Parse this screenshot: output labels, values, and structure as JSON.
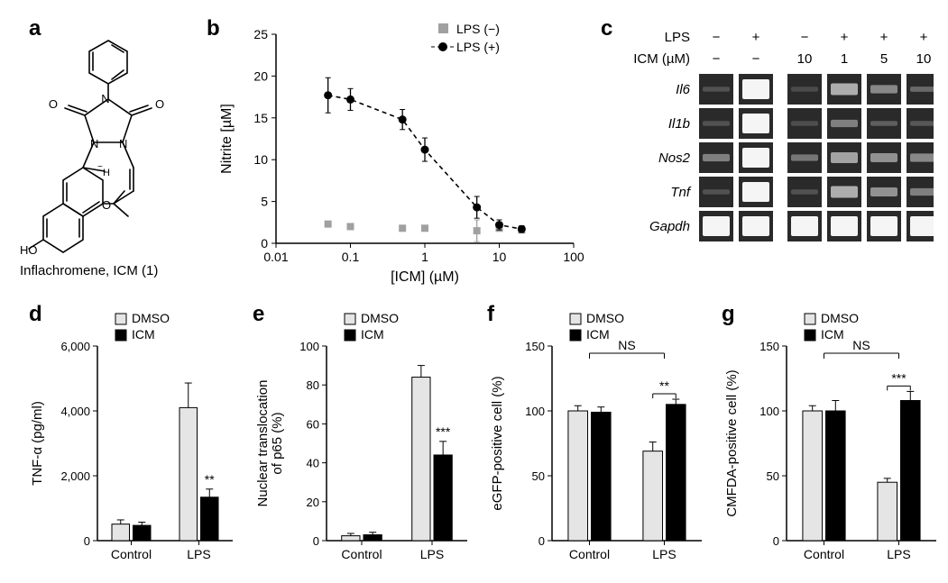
{
  "panels": {
    "a": {
      "label": "a",
      "caption": "Inflachromene, ICM (1)"
    },
    "b": {
      "label": "b",
      "legend": [
        {
          "marker": "square",
          "color": "#a0a0a0",
          "label": "LPS (−)"
        },
        {
          "marker": "circle",
          "color": "#000000",
          "label": "LPS (+)"
        }
      ],
      "ylabel": "Nitrite [µM]",
      "xlabel": "[ICM] (µM)",
      "xlog": true,
      "xlim": [
        0.01,
        100
      ],
      "xticks": [
        0.01,
        0.1,
        1,
        10,
        100
      ],
      "ylim": [
        0,
        25
      ],
      "yticks": [
        0,
        5,
        10,
        15,
        20,
        25
      ],
      "series_plus": [
        {
          "x": 0.05,
          "y": 17.7,
          "err": 2.1
        },
        {
          "x": 0.1,
          "y": 17.2,
          "err": 1.3
        },
        {
          "x": 0.5,
          "y": 14.8,
          "err": 1.2
        },
        {
          "x": 1.0,
          "y": 11.2,
          "err": 1.4
        },
        {
          "x": 5.0,
          "y": 4.3,
          "err": 1.3
        },
        {
          "x": 10.0,
          "y": 2.2,
          "err": 0.6
        },
        {
          "x": 20.0,
          "y": 1.7,
          "err": 0.4
        }
      ],
      "series_minus": [
        {
          "x": 0.05,
          "y": 2.3,
          "err": 0.3
        },
        {
          "x": 0.1,
          "y": 2.0,
          "err": 0.3
        },
        {
          "x": 0.5,
          "y": 1.8,
          "err": 0.3
        },
        {
          "x": 1.0,
          "y": 1.8,
          "err": 0.3
        },
        {
          "x": 5.0,
          "y": 1.5,
          "err": 1.3
        },
        {
          "x": 10.0,
          "y": 1.8,
          "err": 0.3
        },
        {
          "x": 20.0,
          "y": 1.6,
          "err": 0.3
        }
      ],
      "axis_color": "#000",
      "tick_fontsize": 14,
      "label_fontsize": 16
    },
    "c": {
      "label": "c",
      "header_rows": [
        {
          "name": "LPS",
          "values": [
            "−",
            "+",
            "−",
            "+",
            "+",
            "+"
          ]
        },
        {
          "name": "ICM (µM)",
          "values": [
            "−",
            "−",
            "10",
            "1",
            "5",
            "10"
          ]
        }
      ],
      "rows": [
        {
          "gene": "Il6",
          "bands": [
            0.05,
            1.0,
            0.02,
            0.55,
            0.35,
            0.18
          ]
        },
        {
          "gene": "Il1b",
          "bands": [
            0.05,
            1.0,
            0.03,
            0.3,
            0.12,
            0.08
          ]
        },
        {
          "gene": "Nos2",
          "bands": [
            0.3,
            1.0,
            0.25,
            0.5,
            0.4,
            0.35
          ]
        },
        {
          "gene": "Tnf",
          "bands": [
            0.05,
            1.0,
            0.05,
            0.55,
            0.4,
            0.3
          ]
        },
        {
          "gene": "Gapdh",
          "bands": [
            1.0,
            1.0,
            1.0,
            1.0,
            1.0,
            1.0
          ]
        }
      ],
      "bg_color": "#2a2a2a",
      "band_color": "#f5f5f5",
      "gap_color": "#ffffff",
      "label_fontsize": 15,
      "gene_italic": true
    },
    "d": {
      "label": "d",
      "ylabel": "TNF-α (pg/ml)",
      "legend": [
        {
          "fill": "#e5e5e5",
          "label": "DMSO"
        },
        {
          "fill": "#000000",
          "label": "ICM"
        }
      ],
      "groups": [
        "Control",
        "LPS"
      ],
      "ylim": [
        0,
        6000
      ],
      "yticks": [
        0,
        2000,
        4000,
        6000
      ],
      "ytick_labels": [
        "0",
        "2,000",
        "4,000",
        "6,000"
      ],
      "data": [
        {
          "dmso": 510,
          "dmso_err": 130,
          "icm": 470,
          "icm_err": 100
        },
        {
          "dmso": 4100,
          "dmso_err": 760,
          "icm": 1340,
          "icm_err": 250,
          "sig": "**"
        }
      ]
    },
    "e": {
      "label": "e",
      "ylabel": "Nuclear translocation\nof p65 (%)",
      "legend": [
        {
          "fill": "#e5e5e5",
          "label": "DMSO"
        },
        {
          "fill": "#000000",
          "label": "ICM"
        }
      ],
      "groups": [
        "Control",
        "LPS"
      ],
      "ylim": [
        0,
        100
      ],
      "yticks": [
        0,
        20,
        40,
        60,
        80,
        100
      ],
      "data": [
        {
          "dmso": 2.5,
          "dmso_err": 1.2,
          "icm": 3.0,
          "icm_err": 1.3
        },
        {
          "dmso": 84,
          "dmso_err": 6,
          "icm": 44,
          "icm_err": 7,
          "sig": "***"
        }
      ]
    },
    "f": {
      "label": "f",
      "ylabel": "eGFP-positive cell (%)",
      "legend": [
        {
          "fill": "#e5e5e5",
          "label": "DMSO"
        },
        {
          "fill": "#000000",
          "label": "ICM"
        }
      ],
      "groups": [
        "Control",
        "LPS"
      ],
      "ylim": [
        0,
        150
      ],
      "yticks": [
        0,
        50,
        100,
        150
      ],
      "data": [
        {
          "dmso": 100,
          "dmso_err": 4,
          "icm": 99,
          "icm_err": 4
        },
        {
          "dmso": 69,
          "dmso_err": 7,
          "icm": 105,
          "icm_err": 4,
          "sig": "**"
        }
      ],
      "ns_between": true
    },
    "g": {
      "label": "g",
      "ylabel": "CMFDA-positive cell (%)",
      "legend": [
        {
          "fill": "#e5e5e5",
          "label": "DMSO"
        },
        {
          "fill": "#000000",
          "label": "ICM"
        }
      ],
      "groups": [
        "Control",
        "LPS"
      ],
      "ylim": [
        0,
        150
      ],
      "yticks": [
        0,
        50,
        100,
        150
      ],
      "data": [
        {
          "dmso": 100,
          "dmso_err": 4,
          "icm": 100,
          "icm_err": 8
        },
        {
          "dmso": 45,
          "dmso_err": 3,
          "icm": 108,
          "icm_err": 7,
          "sig": "***"
        }
      ],
      "ns_between": true
    }
  },
  "style": {
    "ns_label": "NS",
    "bar_stroke": "#000",
    "legend_box_size": 12,
    "font_axis": 14
  }
}
